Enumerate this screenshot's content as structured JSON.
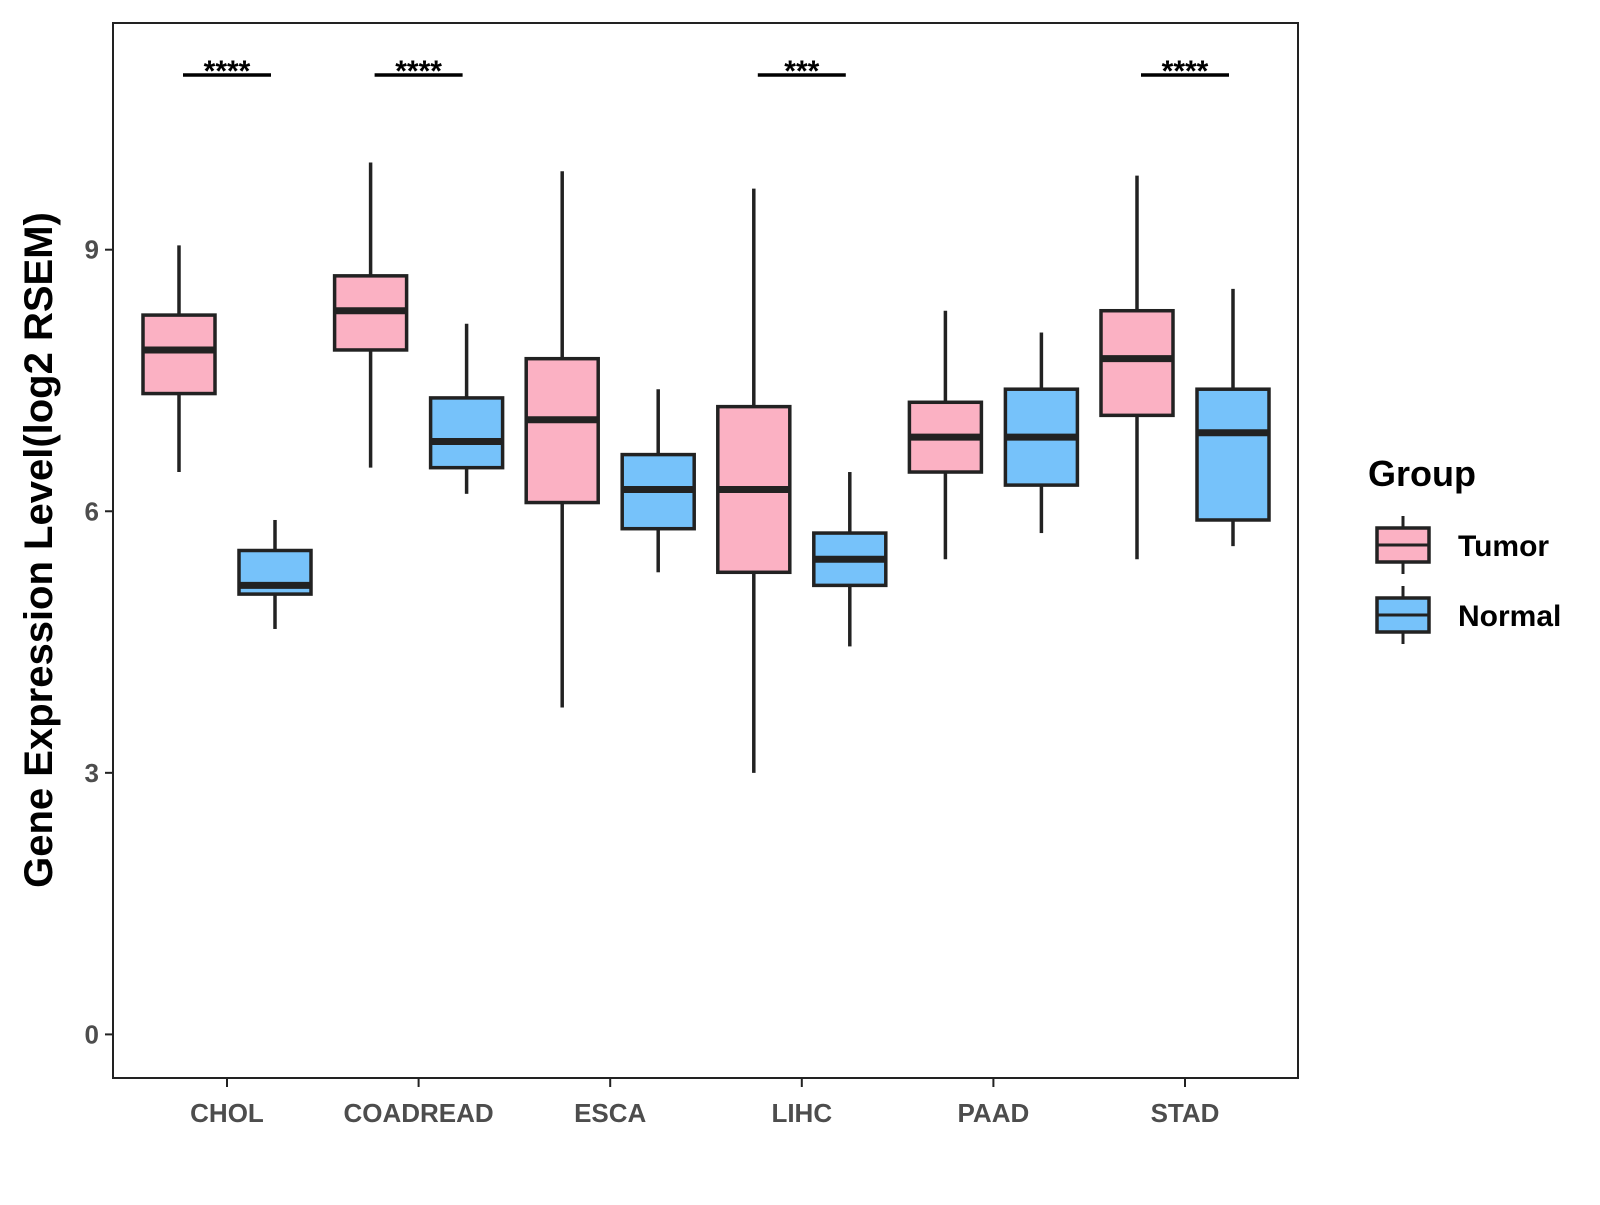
{
  "chart_data": {
    "type": "box",
    "title": "",
    "xlabel": "",
    "ylabel": "Gene Expression Level(log2 RSEM)",
    "ylim": [
      -0.5,
      11.6
    ],
    "yticks": [
      0,
      3,
      6,
      9
    ],
    "ytick_labels": [
      "0",
      "3",
      "6",
      "9"
    ],
    "grid": false,
    "categories": [
      "CHOL",
      "COADREAD",
      "ESCA",
      "LIHC",
      "PAAD",
      "STAD"
    ],
    "legend": {
      "title": "Group",
      "position": "right",
      "entries": [
        "Tumor",
        "Normal"
      ]
    },
    "series": [
      {
        "name": "Tumor",
        "color": "#FBB1C3",
        "boxes": [
          {
            "category": "CHOL",
            "whisker_low": 6.45,
            "q1": 7.35,
            "median": 7.85,
            "q3": 8.25,
            "whisker_high": 9.05
          },
          {
            "category": "COADREAD",
            "whisker_low": 6.5,
            "q1": 7.85,
            "median": 8.3,
            "q3": 8.7,
            "whisker_high": 10.0
          },
          {
            "category": "ESCA",
            "whisker_low": 3.75,
            "q1": 6.1,
            "median": 7.05,
            "q3": 7.75,
            "whisker_high": 9.9
          },
          {
            "category": "LIHC",
            "whisker_low": 3.0,
            "q1": 5.3,
            "median": 6.25,
            "q3": 7.2,
            "whisker_high": 9.7
          },
          {
            "category": "PAAD",
            "whisker_low": 5.45,
            "q1": 6.45,
            "median": 6.85,
            "q3": 7.25,
            "whisker_high": 8.3
          },
          {
            "category": "STAD",
            "whisker_low": 5.45,
            "q1": 7.1,
            "median": 7.75,
            "q3": 8.3,
            "whisker_high": 9.85
          }
        ]
      },
      {
        "name": "Normal",
        "color": "#76C2FA",
        "boxes": [
          {
            "category": "CHOL",
            "whisker_low": 4.65,
            "q1": 5.05,
            "median": 5.15,
            "q3": 5.55,
            "whisker_high": 5.9
          },
          {
            "category": "COADREAD",
            "whisker_low": 6.2,
            "q1": 6.5,
            "median": 6.8,
            "q3": 7.3,
            "whisker_high": 8.15
          },
          {
            "category": "ESCA",
            "whisker_low": 5.3,
            "q1": 5.8,
            "median": 6.25,
            "q3": 6.65,
            "whisker_high": 7.4
          },
          {
            "category": "LIHC",
            "whisker_low": 4.45,
            "q1": 5.15,
            "median": 5.45,
            "q3": 5.75,
            "whisker_high": 6.45
          },
          {
            "category": "PAAD",
            "whisker_low": 5.75,
            "q1": 6.3,
            "median": 6.85,
            "q3": 7.4,
            "whisker_high": 8.05
          },
          {
            "category": "STAD",
            "whisker_low": 5.6,
            "q1": 5.9,
            "median": 6.9,
            "q3": 7.4,
            "whisker_high": 8.55
          }
        ]
      }
    ],
    "annotations": [
      {
        "category": "CHOL",
        "label": "****"
      },
      {
        "category": "COADREAD",
        "label": "****"
      },
      {
        "category": "LIHC",
        "label": "***"
      },
      {
        "category": "STAD",
        "label": "****"
      }
    ]
  }
}
